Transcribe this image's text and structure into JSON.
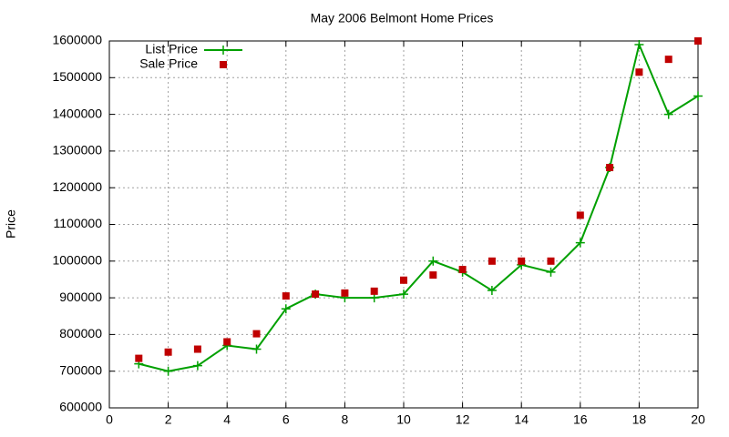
{
  "chart_data": {
    "type": "line",
    "title": "May 2006 Belmont Home Prices",
    "y_label": "Price",
    "x": [
      1,
      2,
      3,
      4,
      5,
      6,
      7,
      8,
      9,
      10,
      11,
      12,
      13,
      14,
      15,
      16,
      17,
      18,
      19,
      20
    ],
    "series": [
      {
        "name": "List Price",
        "color": "#00a000",
        "style": "linespoints",
        "values": [
          720000,
          700000,
          715000,
          770000,
          760000,
          870000,
          910000,
          900000,
          900000,
          910000,
          1000000,
          970000,
          920000,
          990000,
          970000,
          1050000,
          1255000,
          1590000,
          1400000,
          1450000
        ]
      },
      {
        "name": "Sale Price",
        "color": "#c00000",
        "style": "points",
        "values": [
          735000,
          752000,
          760000,
          780000,
          802000,
          905000,
          910000,
          913000,
          918000,
          948000,
          962000,
          977000,
          1000000,
          1000000,
          1000000,
          1125000,
          1255000,
          1515000,
          1550000,
          1600000
        ]
      }
    ],
    "xlim": [
      0,
      20
    ],
    "xticks": [
      0,
      2,
      4,
      6,
      8,
      10,
      12,
      14,
      16,
      18,
      20
    ],
    "ylim": [
      600000,
      1600000
    ],
    "yticks": [
      600000,
      700000,
      800000,
      900000,
      1000000,
      1100000,
      1200000,
      1300000,
      1400000,
      1500000,
      1600000
    ],
    "grid": true,
    "legend": "top left"
  }
}
